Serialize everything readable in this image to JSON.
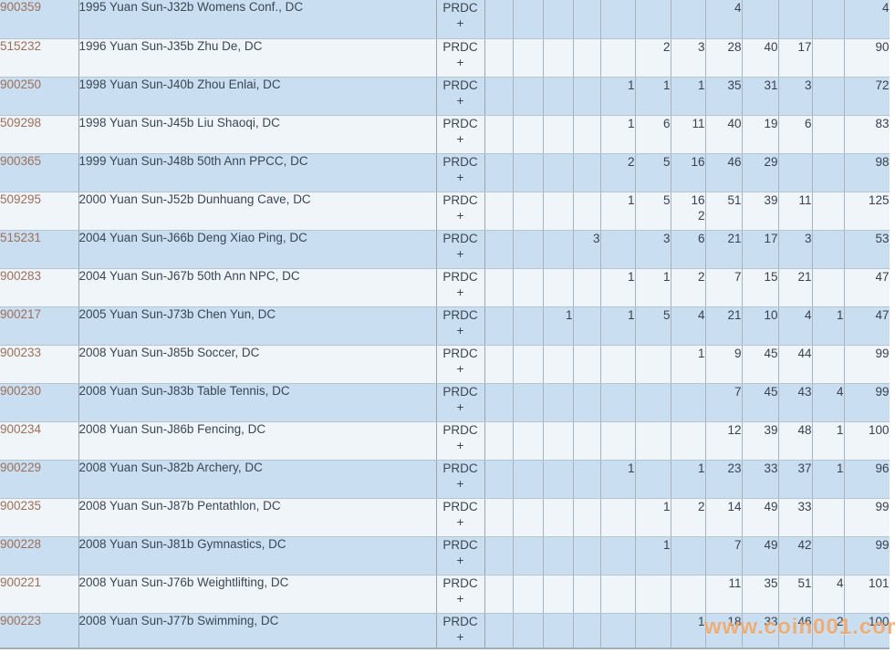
{
  "watermark": "www.coin001.com",
  "colors": {
    "row_blue": "#c9def0",
    "row_light": "#f0f5fa",
    "id_link_brown": "#9d6f58",
    "text_dark": "#3a4754",
    "watermark_orange": "#f2a05e"
  },
  "table": {
    "designation_label": "PRDC",
    "plus_label": "+",
    "grade_column_count": 11,
    "rows": [
      {
        "id": "900359",
        "desc": "1995 Yuan Sun-J32b Womens Conf., DC",
        "values": [
          "",
          "",
          "",
          "",
          "",
          "",
          "",
          "4",
          "",
          "",
          ""
        ],
        "plus": [
          "",
          "",
          "",
          "",
          "",
          "",
          "",
          "",
          "",
          "",
          ""
        ],
        "total": "4"
      },
      {
        "id": "515232",
        "desc": "1996 Yuan Sun-J35b Zhu De, DC",
        "values": [
          "",
          "",
          "",
          "",
          "",
          "2",
          "3",
          "28",
          "40",
          "17",
          ""
        ],
        "plus": [
          "",
          "",
          "",
          "",
          "",
          "",
          "",
          "",
          "",
          "",
          ""
        ],
        "total": "90"
      },
      {
        "id": "900250",
        "desc": "1998 Yuan Sun-J40b Zhou Enlai, DC",
        "values": [
          "",
          "",
          "",
          "",
          "1",
          "1",
          "1",
          "35",
          "31",
          "3",
          ""
        ],
        "plus": [
          "",
          "",
          "",
          "",
          "",
          "",
          "",
          "",
          "",
          "",
          ""
        ],
        "total": "72"
      },
      {
        "id": "509298",
        "desc": "1998 Yuan Sun-J45b Liu Shaoqi, DC",
        "values": [
          "",
          "",
          "",
          "",
          "1",
          "6",
          "11",
          "40",
          "19",
          "6",
          ""
        ],
        "plus": [
          "",
          "",
          "",
          "",
          "",
          "",
          "",
          "",
          "",
          "",
          ""
        ],
        "total": "83"
      },
      {
        "id": "900365",
        "desc": "1999 Yuan Sun-J48b 50th Ann PPCC, DC",
        "values": [
          "",
          "",
          "",
          "",
          "2",
          "5",
          "16",
          "46",
          "29",
          "",
          ""
        ],
        "plus": [
          "",
          "",
          "",
          "",
          "",
          "",
          "",
          "",
          "",
          "",
          ""
        ],
        "total": "98"
      },
      {
        "id": "509295",
        "desc": "2000 Yuan Sun-J52b Dunhuang Cave, DC",
        "values": [
          "",
          "",
          "",
          "",
          "1",
          "5",
          "16",
          "51",
          "39",
          "11",
          ""
        ],
        "plus": [
          "",
          "",
          "",
          "",
          "",
          "",
          "2",
          "",
          "",
          "",
          ""
        ],
        "total": "125"
      },
      {
        "id": "515231",
        "desc": "2004 Yuan Sun-J66b Deng Xiao Ping, DC",
        "values": [
          "",
          "",
          "",
          "3",
          "",
          "3",
          "6",
          "21",
          "17",
          "3",
          ""
        ],
        "plus": [
          "",
          "",
          "",
          "",
          "",
          "",
          "",
          "",
          "",
          "",
          ""
        ],
        "total": "53"
      },
      {
        "id": "900283",
        "desc": "2004 Yuan Sun-J67b 50th Ann NPC, DC",
        "values": [
          "",
          "",
          "",
          "",
          "1",
          "1",
          "2",
          "7",
          "15",
          "21",
          ""
        ],
        "plus": [
          "",
          "",
          "",
          "",
          "",
          "",
          "",
          "",
          "",
          "",
          ""
        ],
        "total": "47"
      },
      {
        "id": "900217",
        "desc": "2005 Yuan Sun-J73b Chen Yun, DC",
        "values": [
          "",
          "",
          "1",
          "",
          "1",
          "5",
          "4",
          "21",
          "10",
          "4",
          "1"
        ],
        "plus": [
          "",
          "",
          "",
          "",
          "",
          "",
          "",
          "",
          "",
          "",
          ""
        ],
        "total": "47"
      },
      {
        "id": "900233",
        "desc": "2008 Yuan Sun-J85b Soccer, DC",
        "values": [
          "",
          "",
          "",
          "",
          "",
          "",
          "1",
          "9",
          "45",
          "44",
          ""
        ],
        "plus": [
          "",
          "",
          "",
          "",
          "",
          "",
          "",
          "",
          "",
          "",
          ""
        ],
        "total": "99"
      },
      {
        "id": "900230",
        "desc": "2008 Yuan Sun-J83b Table Tennis, DC",
        "values": [
          "",
          "",
          "",
          "",
          "",
          "",
          "",
          "7",
          "45",
          "43",
          "4"
        ],
        "plus": [
          "",
          "",
          "",
          "",
          "",
          "",
          "",
          "",
          "",
          "",
          ""
        ],
        "total": "99"
      },
      {
        "id": "900234",
        "desc": "2008 Yuan Sun-J86b Fencing, DC",
        "values": [
          "",
          "",
          "",
          "",
          "",
          "",
          "",
          "12",
          "39",
          "48",
          "1"
        ],
        "plus": [
          "",
          "",
          "",
          "",
          "",
          "",
          "",
          "",
          "",
          "",
          ""
        ],
        "total": "100"
      },
      {
        "id": "900229",
        "desc": "2008 Yuan Sun-J82b Archery, DC",
        "values": [
          "",
          "",
          "",
          "",
          "1",
          "",
          "1",
          "23",
          "33",
          "37",
          "1"
        ],
        "plus": [
          "",
          "",
          "",
          "",
          "",
          "",
          "",
          "",
          "",
          "",
          ""
        ],
        "total": "96"
      },
      {
        "id": "900235",
        "desc": "2008 Yuan Sun-J87b Pentathlon, DC",
        "values": [
          "",
          "",
          "",
          "",
          "",
          "1",
          "2",
          "14",
          "49",
          "33",
          ""
        ],
        "plus": [
          "",
          "",
          "",
          "",
          "",
          "",
          "",
          "",
          "",
          "",
          ""
        ],
        "total": "99"
      },
      {
        "id": "900228",
        "desc": "2008 Yuan Sun-J81b Gymnastics, DC",
        "values": [
          "",
          "",
          "",
          "",
          "",
          "1",
          "",
          "7",
          "49",
          "42",
          ""
        ],
        "plus": [
          "",
          "",
          "",
          "",
          "",
          "",
          "",
          "",
          "",
          "",
          ""
        ],
        "total": "99"
      },
      {
        "id": "900221",
        "desc": "2008 Yuan Sun-J76b Weightlifting, DC",
        "values": [
          "",
          "",
          "",
          "",
          "",
          "",
          "",
          "11",
          "35",
          "51",
          "4"
        ],
        "plus": [
          "",
          "",
          "",
          "",
          "",
          "",
          "",
          "",
          "",
          "",
          ""
        ],
        "total": "101"
      },
      {
        "id": "900223",
        "desc": "2008 Yuan Sun-J77b Swimming, DC",
        "values": [
          "",
          "",
          "",
          "",
          "",
          "",
          "1",
          "18",
          "33",
          "46",
          "2"
        ],
        "plus": [
          "",
          "",
          "",
          "",
          "",
          "",
          "",
          "",
          "",
          "",
          ""
        ],
        "total": "100"
      }
    ]
  }
}
